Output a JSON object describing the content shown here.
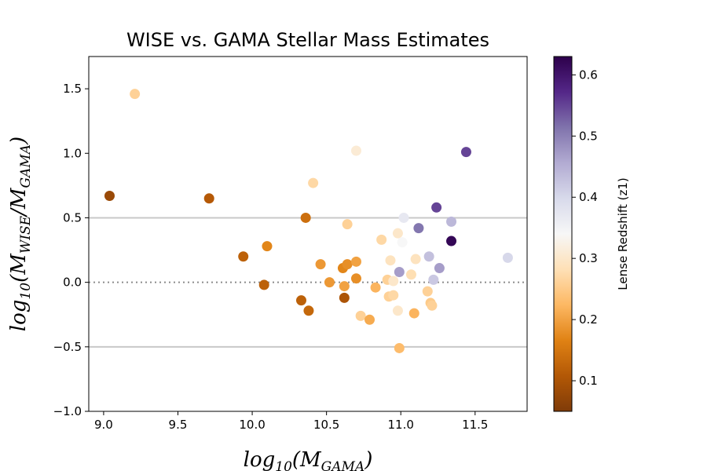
{
  "chart_data": {
    "type": "scatter",
    "title": "WISE vs. GAMA Stellar Mass Estimates",
    "xlabel": {
      "main": "log",
      "sub1": "10",
      "paren_open": "(M",
      "sub2": "GAMA",
      "paren_close": ")"
    },
    "ylabel": {
      "main": "log",
      "sub1": "10",
      "paren_open": "(M",
      "sub2": "WISE",
      "slash": "/M",
      "sub3": "GAMA",
      "paren_close": ")"
    },
    "xlim": [
      8.9,
      11.85
    ],
    "ylim": [
      -1.0,
      1.75
    ],
    "xticks": [
      9.0,
      9.5,
      10.0,
      10.5,
      11.0,
      11.5
    ],
    "xtick_labels": [
      "9.0",
      "9.5",
      "10.0",
      "10.5",
      "11.0",
      "11.5"
    ],
    "yticks": [
      -1.0,
      -0.5,
      0.0,
      0.5,
      1.0,
      1.5
    ],
    "ytick_labels": [
      "−1.0",
      "−0.5",
      "0.0",
      "0.5",
      "1.0",
      "1.5"
    ],
    "reference_lines": [
      {
        "y": 0.5,
        "style": "solid",
        "color": "#c8c8c8"
      },
      {
        "y": -0.5,
        "style": "solid",
        "color": "#c8c8c8"
      },
      {
        "y": 0.0,
        "style": "dotted",
        "color": "#8c8c8c"
      }
    ],
    "colorbar": {
      "label": "Lense Redshift (z1)",
      "range": [
        0.05,
        0.63
      ],
      "ticks": [
        0.1,
        0.2,
        0.3,
        0.4,
        0.5,
        0.6
      ],
      "tick_labels": [
        "0.1",
        "0.2",
        "0.3",
        "0.4",
        "0.5",
        "0.6"
      ],
      "colormap": "PuOr",
      "stops": [
        "#7f3b08",
        "#b35806",
        "#e08214",
        "#fdb863",
        "#fee0b6",
        "#f7f7f7",
        "#d8daeb",
        "#b2abd2",
        "#8073ac",
        "#542788",
        "#2d004b"
      ]
    },
    "points": [
      {
        "x": 9.04,
        "y": 0.67,
        "z": 0.08
      },
      {
        "x": 9.21,
        "y": 1.46,
        "z": 0.26
      },
      {
        "x": 9.71,
        "y": 0.65,
        "z": 0.11
      },
      {
        "x": 9.94,
        "y": 0.2,
        "z": 0.12
      },
      {
        "x": 10.08,
        "y": -0.02,
        "z": 0.12
      },
      {
        "x": 10.1,
        "y": 0.28,
        "z": 0.17
      },
      {
        "x": 10.33,
        "y": -0.14,
        "z": 0.12
      },
      {
        "x": 10.36,
        "y": 0.5,
        "z": 0.14
      },
      {
        "x": 10.38,
        "y": -0.22,
        "z": 0.13
      },
      {
        "x": 10.41,
        "y": 0.77,
        "z": 0.27
      },
      {
        "x": 10.46,
        "y": 0.14,
        "z": 0.19
      },
      {
        "x": 10.52,
        "y": 0.0,
        "z": 0.19
      },
      {
        "x": 10.61,
        "y": 0.11,
        "z": 0.17
      },
      {
        "x": 10.62,
        "y": -0.03,
        "z": 0.2
      },
      {
        "x": 10.62,
        "y": -0.12,
        "z": 0.1
      },
      {
        "x": 10.64,
        "y": 0.14,
        "z": 0.18
      },
      {
        "x": 10.64,
        "y": 0.45,
        "z": 0.26
      },
      {
        "x": 10.7,
        "y": 1.02,
        "z": 0.31
      },
      {
        "x": 10.7,
        "y": 0.16,
        "z": 0.2
      },
      {
        "x": 10.7,
        "y": 0.03,
        "z": 0.18
      },
      {
        "x": 10.73,
        "y": -0.26,
        "z": 0.26
      },
      {
        "x": 10.79,
        "y": -0.29,
        "z": 0.21
      },
      {
        "x": 10.83,
        "y": -0.04,
        "z": 0.22
      },
      {
        "x": 10.87,
        "y": 0.33,
        "z": 0.27
      },
      {
        "x": 10.91,
        "y": 0.02,
        "z": 0.26
      },
      {
        "x": 10.92,
        "y": -0.11,
        "z": 0.26
      },
      {
        "x": 10.93,
        "y": 0.17,
        "z": 0.29
      },
      {
        "x": 10.95,
        "y": -0.1,
        "z": 0.27
      },
      {
        "x": 10.95,
        "y": 0.01,
        "z": 0.3
      },
      {
        "x": 10.98,
        "y": 0.38,
        "z": 0.3
      },
      {
        "x": 10.98,
        "y": -0.22,
        "z": 0.3
      },
      {
        "x": 10.99,
        "y": 0.08,
        "z": 0.47
      },
      {
        "x": 10.99,
        "y": -0.51,
        "z": 0.23
      },
      {
        "x": 11.01,
        "y": 0.31,
        "z": 0.34
      },
      {
        "x": 11.02,
        "y": 0.5,
        "z": 0.37
      },
      {
        "x": 11.07,
        "y": 0.06,
        "z": 0.28
      },
      {
        "x": 11.09,
        "y": -0.24,
        "z": 0.22
      },
      {
        "x": 11.1,
        "y": 0.18,
        "z": 0.29
      },
      {
        "x": 11.12,
        "y": 0.42,
        "z": 0.51
      },
      {
        "x": 11.18,
        "y": -0.07,
        "z": 0.26
      },
      {
        "x": 11.19,
        "y": 0.2,
        "z": 0.43
      },
      {
        "x": 11.2,
        "y": -0.16,
        "z": 0.25
      },
      {
        "x": 11.21,
        "y": -0.18,
        "z": 0.26
      },
      {
        "x": 11.22,
        "y": 0.02,
        "z": 0.42
      },
      {
        "x": 11.24,
        "y": 0.58,
        "z": 0.55
      },
      {
        "x": 11.26,
        "y": 0.11,
        "z": 0.47
      },
      {
        "x": 11.34,
        "y": 0.32,
        "z": 0.62
      },
      {
        "x": 11.34,
        "y": 0.47,
        "z": 0.44
      },
      {
        "x": 11.44,
        "y": 1.01,
        "z": 0.55
      },
      {
        "x": 11.72,
        "y": 0.19,
        "z": 0.4
      }
    ]
  }
}
